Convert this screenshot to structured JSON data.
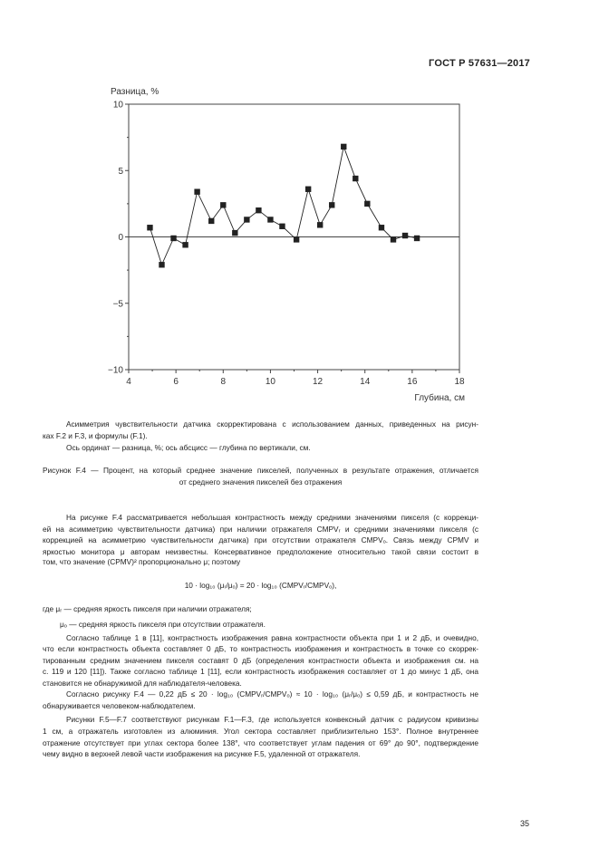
{
  "header": {
    "doc_code": "ГОСТ Р 57631—2017"
  },
  "chart_data": {
    "type": "line",
    "ylabel": "Разница, %",
    "xlabel": "Глубина, см",
    "xlim": [
      4,
      18
    ],
    "ylim": [
      -10,
      10
    ],
    "x_ticks": [
      "4",
      "6",
      "8",
      "10",
      "12",
      "14",
      "16",
      "18"
    ],
    "y_ticks": [
      "10",
      "5",
      "0",
      "−5",
      "−10"
    ],
    "grid": false,
    "marker": "square",
    "color": "#222222",
    "x": [
      4.9,
      5.4,
      5.9,
      6.4,
      6.9,
      7.5,
      8.0,
      8.5,
      9.0,
      9.5,
      10.0,
      10.5,
      11.1,
      11.6,
      12.1,
      12.6,
      13.1,
      13.6,
      14.1,
      14.7,
      15.2,
      15.7,
      16.2
    ],
    "y": [
      0.7,
      -2.1,
      -0.1,
      -0.6,
      3.4,
      1.2,
      2.4,
      0.3,
      1.3,
      2.0,
      1.3,
      0.8,
      -0.2,
      3.6,
      0.9,
      2.4,
      6.8,
      4.4,
      2.5,
      0.7,
      -0.2,
      0.1,
      -0.1
    ]
  },
  "notes": [
    "Асимметрия чувствительности датчика скорректирована с использованием данных, приведенных на рисун-",
    "ках F.2 и F.3, и формулы (F.1).",
    "Ось ординат — разница, %; ось абсцисс — глубина по вертикали, см."
  ],
  "caption": [
    "Рисунок F.4 — Процент, на который среднее значение пикселей, полученных в результате отражения, отличается",
    "от среднего значения пикселей без отражения"
  ],
  "para1": [
    "На рисунке F.4 рассматривается небольшая контрастность между средними значениями пикселя (с коррекци-",
    "ей на асимметрию чувствительности датчика) при наличии отражателя CMPVᵣ и средними значениями пикселя (с",
    "коррекцией на асимметрию чувствительности датчика) при отсутствии отражателя CMPVₒ. Связь между CPMV и",
    "яркостью монитора μ авторам неизвестны. Консервативное предположение относительно такой связи состоит в",
    "том, что значение (CPMV)² пропорционально μ; поэтому"
  ],
  "formula": "10 · log₁₀ (μᵣ/μₒ) = 20 · log₁₀ (CMPVᵣ/CMPVₒ),",
  "where": [
    "где  μᵣ — средняя яркость пикселя при наличии отражателя;",
    "μₒ — средняя яркость пикселя при отсутствии отражателя."
  ],
  "para2": [
    "Согласно таблице 1 в [11], контрастность изображения равна контрастности объекта при 1 и 2 дБ, и очевидно,",
    "что если контрастность объекта составляет 0 дБ, то контрастность изображения и контрастность в точке со скоррек-",
    "тированным средним значением пикселя составят 0 дБ (определения контрастности объекта и изображения см. на",
    "с. 119 и 120 [11]). Также согласно таблице 1 [11], если контрастность изображения составляет от 1 до минус 1 дБ, она",
    "становится не обнаружимой для наблюдателя-человека."
  ],
  "para3": [
    "Согласно рисунку F.4 — 0,22 дБ ≤ 20 · log₁₀ (CMPVᵣ/CMPVₒ) ≈ 10 · log₁₀ (μᵣ/μₒ) ≤ 0,59 дБ, и контрастность не",
    "обнаруживается человеком-наблюдателем."
  ],
  "para4": [
    "Рисунки F.5—F.7 соответствуют рисункам F.1—F.3, где используется конвексный датчик с радиусом кривизны",
    "1 см, а отражатель изготовлен из алюминия. Угол сектора составляет приблизительно 153°. Полное внутреннее",
    "отражение отсутствует при углах сектора более 138°, что соответствует углам падения от 69° до 90°, подтверждение",
    "чему видно в верхней левой части изображения на рисунке F.5, удаленной от отражателя."
  ],
  "page_number": "35"
}
